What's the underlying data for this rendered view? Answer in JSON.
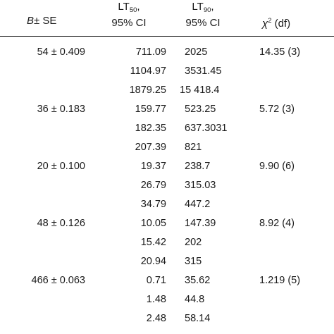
{
  "header": {
    "b_se_letter": "B",
    "b_se_rest": "± SE",
    "lt50_base": "LT",
    "lt50_sub": "50",
    "lt50_suffix": ",",
    "lt50_ci": "95% CI",
    "lt90_base": "LT",
    "lt90_sub": "90",
    "lt90_suffix": ",",
    "lt90_ci": "95% CI",
    "chi_symbol": "χ",
    "chi_sup": "2",
    "chi_rest": " (df)"
  },
  "rows": [
    {
      "b_se": "54 ± 0.409",
      "lt50": "711.09",
      "lt90": "2025",
      "chi": "14.35 (3)"
    },
    {
      "b_se": "",
      "lt50": "1104.97",
      "lt90": "3531.45",
      "chi": ""
    },
    {
      "b_se": "",
      "lt50": "1879.25",
      "lt90": "15 418.4",
      "chi": ""
    },
    {
      "b_se": "36 ± 0.183",
      "lt50": "159.77",
      "lt90": "523.25",
      "chi": "5.72 (3)"
    },
    {
      "b_se": "",
      "lt50": "182.35",
      "lt90": "637.3031",
      "chi": ""
    },
    {
      "b_se": "",
      "lt50": "207.39",
      "lt90": "821",
      "chi": ""
    },
    {
      "b_se": "20 ± 0.100",
      "lt50": "19.37",
      "lt90": "238.7",
      "chi": "9.90 (6)"
    },
    {
      "b_se": "",
      "lt50": "26.79",
      "lt90": "315.03",
      "chi": ""
    },
    {
      "b_se": "",
      "lt50": "34.79",
      "lt90": "447.2",
      "chi": ""
    },
    {
      "b_se": "48 ± 0.126",
      "lt50": "10.05",
      "lt90": "147.39",
      "chi": "8.92 (4)"
    },
    {
      "b_se": "",
      "lt50": "15.42",
      "lt90": "202",
      "chi": ""
    },
    {
      "b_se": "",
      "lt50": "20.94",
      "lt90": "315",
      "chi": ""
    },
    {
      "b_se": "466 ± 0.063",
      "lt50": "0.71",
      "lt90": "35.62",
      "chi": "1.219 (5)"
    },
    {
      "b_se": "",
      "lt50": "1.48",
      "lt90": "44.8",
      "chi": ""
    },
    {
      "b_se": "",
      "lt50": "2.48",
      "lt90": "58.14",
      "chi": ""
    }
  ]
}
